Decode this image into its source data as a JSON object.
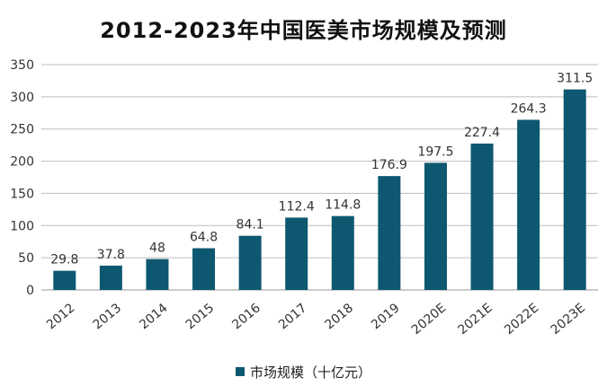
{
  "chart_data": {
    "type": "bar",
    "title": "2012-2023年中国医美市场规模及预测",
    "categories": [
      "2012",
      "2013",
      "2014",
      "2015",
      "2016",
      "2017",
      "2018",
      "2019",
      "2020E",
      "2021E",
      "2022E",
      "2023E"
    ],
    "series": [
      {
        "name": "市场规模（十亿元）",
        "values": [
          29.8,
          37.8,
          48,
          64.8,
          84.1,
          112.4,
          114.8,
          176.9,
          197.5,
          227.4,
          264.3,
          311.5
        ],
        "labels": [
          "29.8",
          "37.8",
          "48",
          "64.8",
          "84.1",
          "112.4",
          "114.8",
          "176.9",
          "197.5",
          "227.4",
          "264.3",
          "311.5"
        ]
      }
    ],
    "ylim": [
      0,
      350
    ],
    "yticks": [
      "0",
      "50",
      "100",
      "150",
      "200",
      "250",
      "300",
      "350"
    ],
    "grid": true,
    "legend": "bottom",
    "bar_color": "#0d5870"
  }
}
